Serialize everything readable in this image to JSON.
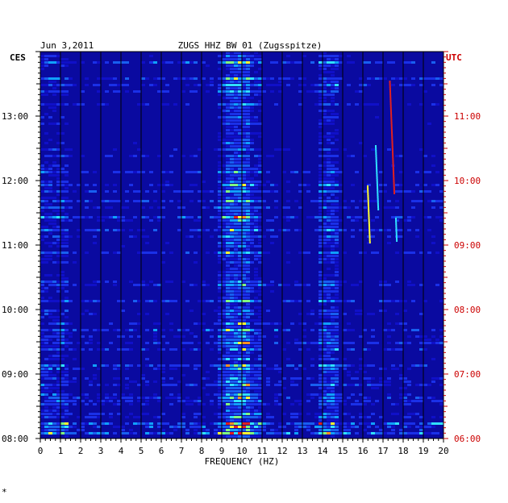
{
  "chart_data": {
    "type": "heatmap",
    "date": "Jun 3,2011",
    "title": "ZUGS HHZ BW 01 (Zugsspitze)",
    "xlabel": "FREQUENCY (HZ)",
    "left_axis_label": "CES",
    "right_axis_label": "UTC",
    "xlim": [
      0,
      20
    ],
    "x_ticks": [
      "0",
      "1",
      "2",
      "3",
      "4",
      "5",
      "6",
      "7",
      "8",
      "9",
      "10",
      "11",
      "12",
      "13",
      "14",
      "15",
      "16",
      "17",
      "18",
      "19",
      "20"
    ],
    "left_time_ticks": [
      "13:00",
      "12:00",
      "11:00",
      "10:00",
      "09:00",
      "08:00"
    ],
    "right_time_ticks": [
      "11:00",
      "10:00",
      "09:00",
      "08:00",
      "07:00",
      "06:00"
    ],
    "time_range_hours": [
      8,
      14
    ],
    "grid_vertical": true,
    "colors": {
      "background": "#0a0aa0",
      "axis_right_labels": "#cc0000",
      "axis_left_labels": "#000000"
    },
    "footer_mark": "*"
  }
}
